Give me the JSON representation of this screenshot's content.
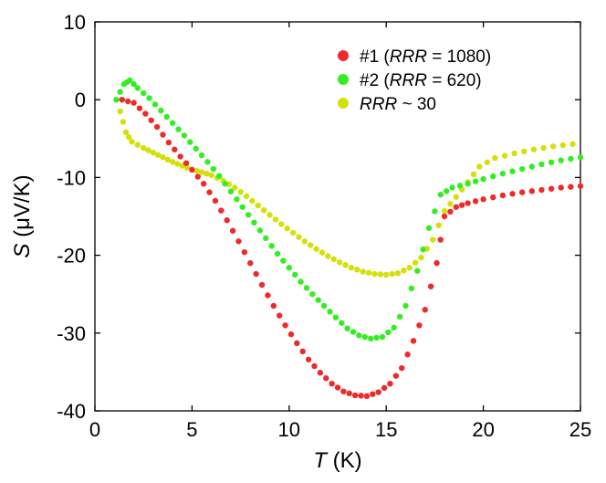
{
  "chart_data": {
    "type": "scatter",
    "title": "",
    "xlabel": {
      "symbol": "T",
      "unit": " (K)"
    },
    "ylabel": {
      "symbol": "S",
      "unit": " (μV/K)"
    },
    "xlim": [
      0,
      25
    ],
    "ylim": [
      -40,
      10
    ],
    "xticks": [
      0,
      5,
      10,
      15,
      20,
      25
    ],
    "yticks": [
      10,
      0,
      -10,
      -20,
      -30,
      -40
    ],
    "xtick_labels": [
      "0",
      "5",
      "10",
      "15",
      "20",
      "25"
    ],
    "ytick_labels": [
      "10",
      "0",
      "-10",
      "-20",
      "-30",
      "-40"
    ],
    "grid": false,
    "legend_position": "top-right",
    "series": [
      {
        "name": "#1 (RRR = 1080)",
        "legend_prefix": "#1 (",
        "legend_italic": "RRR",
        "legend_suffix": " = 1080)",
        "color": "#ee2a2a",
        "x": [
          1.4,
          2.0,
          2.6,
          3.2,
          3.8,
          4.4,
          5.0,
          5.6,
          6.2,
          6.8,
          7.4,
          8.0,
          8.6,
          9.2,
          9.8,
          10.4,
          11.0,
          11.6,
          12.2,
          12.8,
          13.4,
          14.0,
          14.6,
          15.2,
          15.8,
          16.4,
          17.0,
          17.6,
          18.0,
          18.6,
          19.2,
          20.0,
          21.0,
          22.0,
          23.0,
          24.0,
          25.0
        ],
        "y": [
          0.0,
          -0.4,
          -1.8,
          -3.5,
          -5.5,
          -7.3,
          -9.0,
          -10.8,
          -13.0,
          -15.5,
          -18.2,
          -21.0,
          -23.8,
          -26.5,
          -29.0,
          -31.3,
          -33.4,
          -35.1,
          -36.5,
          -37.5,
          -38.0,
          -38.1,
          -37.6,
          -36.5,
          -34.5,
          -31.0,
          -27.0,
          -21.0,
          -15.0,
          -13.8,
          -13.3,
          -12.8,
          -12.3,
          -11.9,
          -11.6,
          -11.3,
          -11.1
        ]
      },
      {
        "name": "#2 (RRR = 620)",
        "legend_prefix": "#2 (",
        "legend_italic": "RRR",
        "legend_suffix": " = 620)",
        "color": "#33ee22",
        "x": [
          1.1,
          1.5,
          1.8,
          2.2,
          2.8,
          3.4,
          4.0,
          4.6,
          5.2,
          5.8,
          6.4,
          7.0,
          7.6,
          8.2,
          8.8,
          9.4,
          10.0,
          10.6,
          11.2,
          11.8,
          12.4,
          13.0,
          13.6,
          14.2,
          14.8,
          15.4,
          16.0,
          16.6,
          17.2,
          17.8,
          18.4,
          19.2,
          20.0,
          21.0,
          22.0,
          23.0,
          24.0,
          25.0
        ],
        "y": [
          0.0,
          2.0,
          2.5,
          1.5,
          0.2,
          -1.4,
          -3.0,
          -4.6,
          -6.3,
          -8.0,
          -9.8,
          -11.8,
          -13.8,
          -15.8,
          -17.8,
          -19.8,
          -21.6,
          -23.4,
          -25.0,
          -26.5,
          -28.0,
          -29.4,
          -30.3,
          -30.7,
          -30.5,
          -29.3,
          -26.5,
          -22.0,
          -16.5,
          -12.2,
          -11.3,
          -10.8,
          -10.2,
          -9.5,
          -8.9,
          -8.3,
          -7.8,
          -7.4
        ]
      },
      {
        "name": "RRR ~ 30",
        "legend_prefix": "",
        "legend_italic": "RRR",
        "legend_suffix": " ~ 30",
        "color": "#d4e00a",
        "x": [
          1.3,
          1.6,
          1.9,
          2.5,
          3.0,
          3.5,
          4.0,
          4.5,
          5.0,
          5.5,
          6.0,
          6.6,
          7.2,
          7.8,
          8.4,
          9.0,
          9.6,
          10.2,
          10.8,
          11.4,
          12.0,
          12.6,
          13.2,
          13.8,
          14.4,
          15.0,
          15.6,
          16.2,
          16.8,
          17.4,
          18.0,
          18.6,
          19.2,
          19.8,
          20.6,
          21.6,
          22.6,
          23.6,
          24.6
        ],
        "y": [
          -1.5,
          -4.2,
          -5.4,
          -6.2,
          -6.8,
          -7.4,
          -8.0,
          -8.5,
          -9.0,
          -9.3,
          -9.7,
          -10.4,
          -11.3,
          -12.4,
          -13.6,
          -14.8,
          -16.0,
          -17.1,
          -18.2,
          -19.2,
          -20.1,
          -20.9,
          -21.6,
          -22.1,
          -22.4,
          -22.5,
          -22.3,
          -21.6,
          -20.3,
          -18.0,
          -14.3,
          -12.5,
          -10.6,
          -8.6,
          -7.5,
          -6.9,
          -6.4,
          -6.0,
          -5.7
        ]
      }
    ]
  }
}
